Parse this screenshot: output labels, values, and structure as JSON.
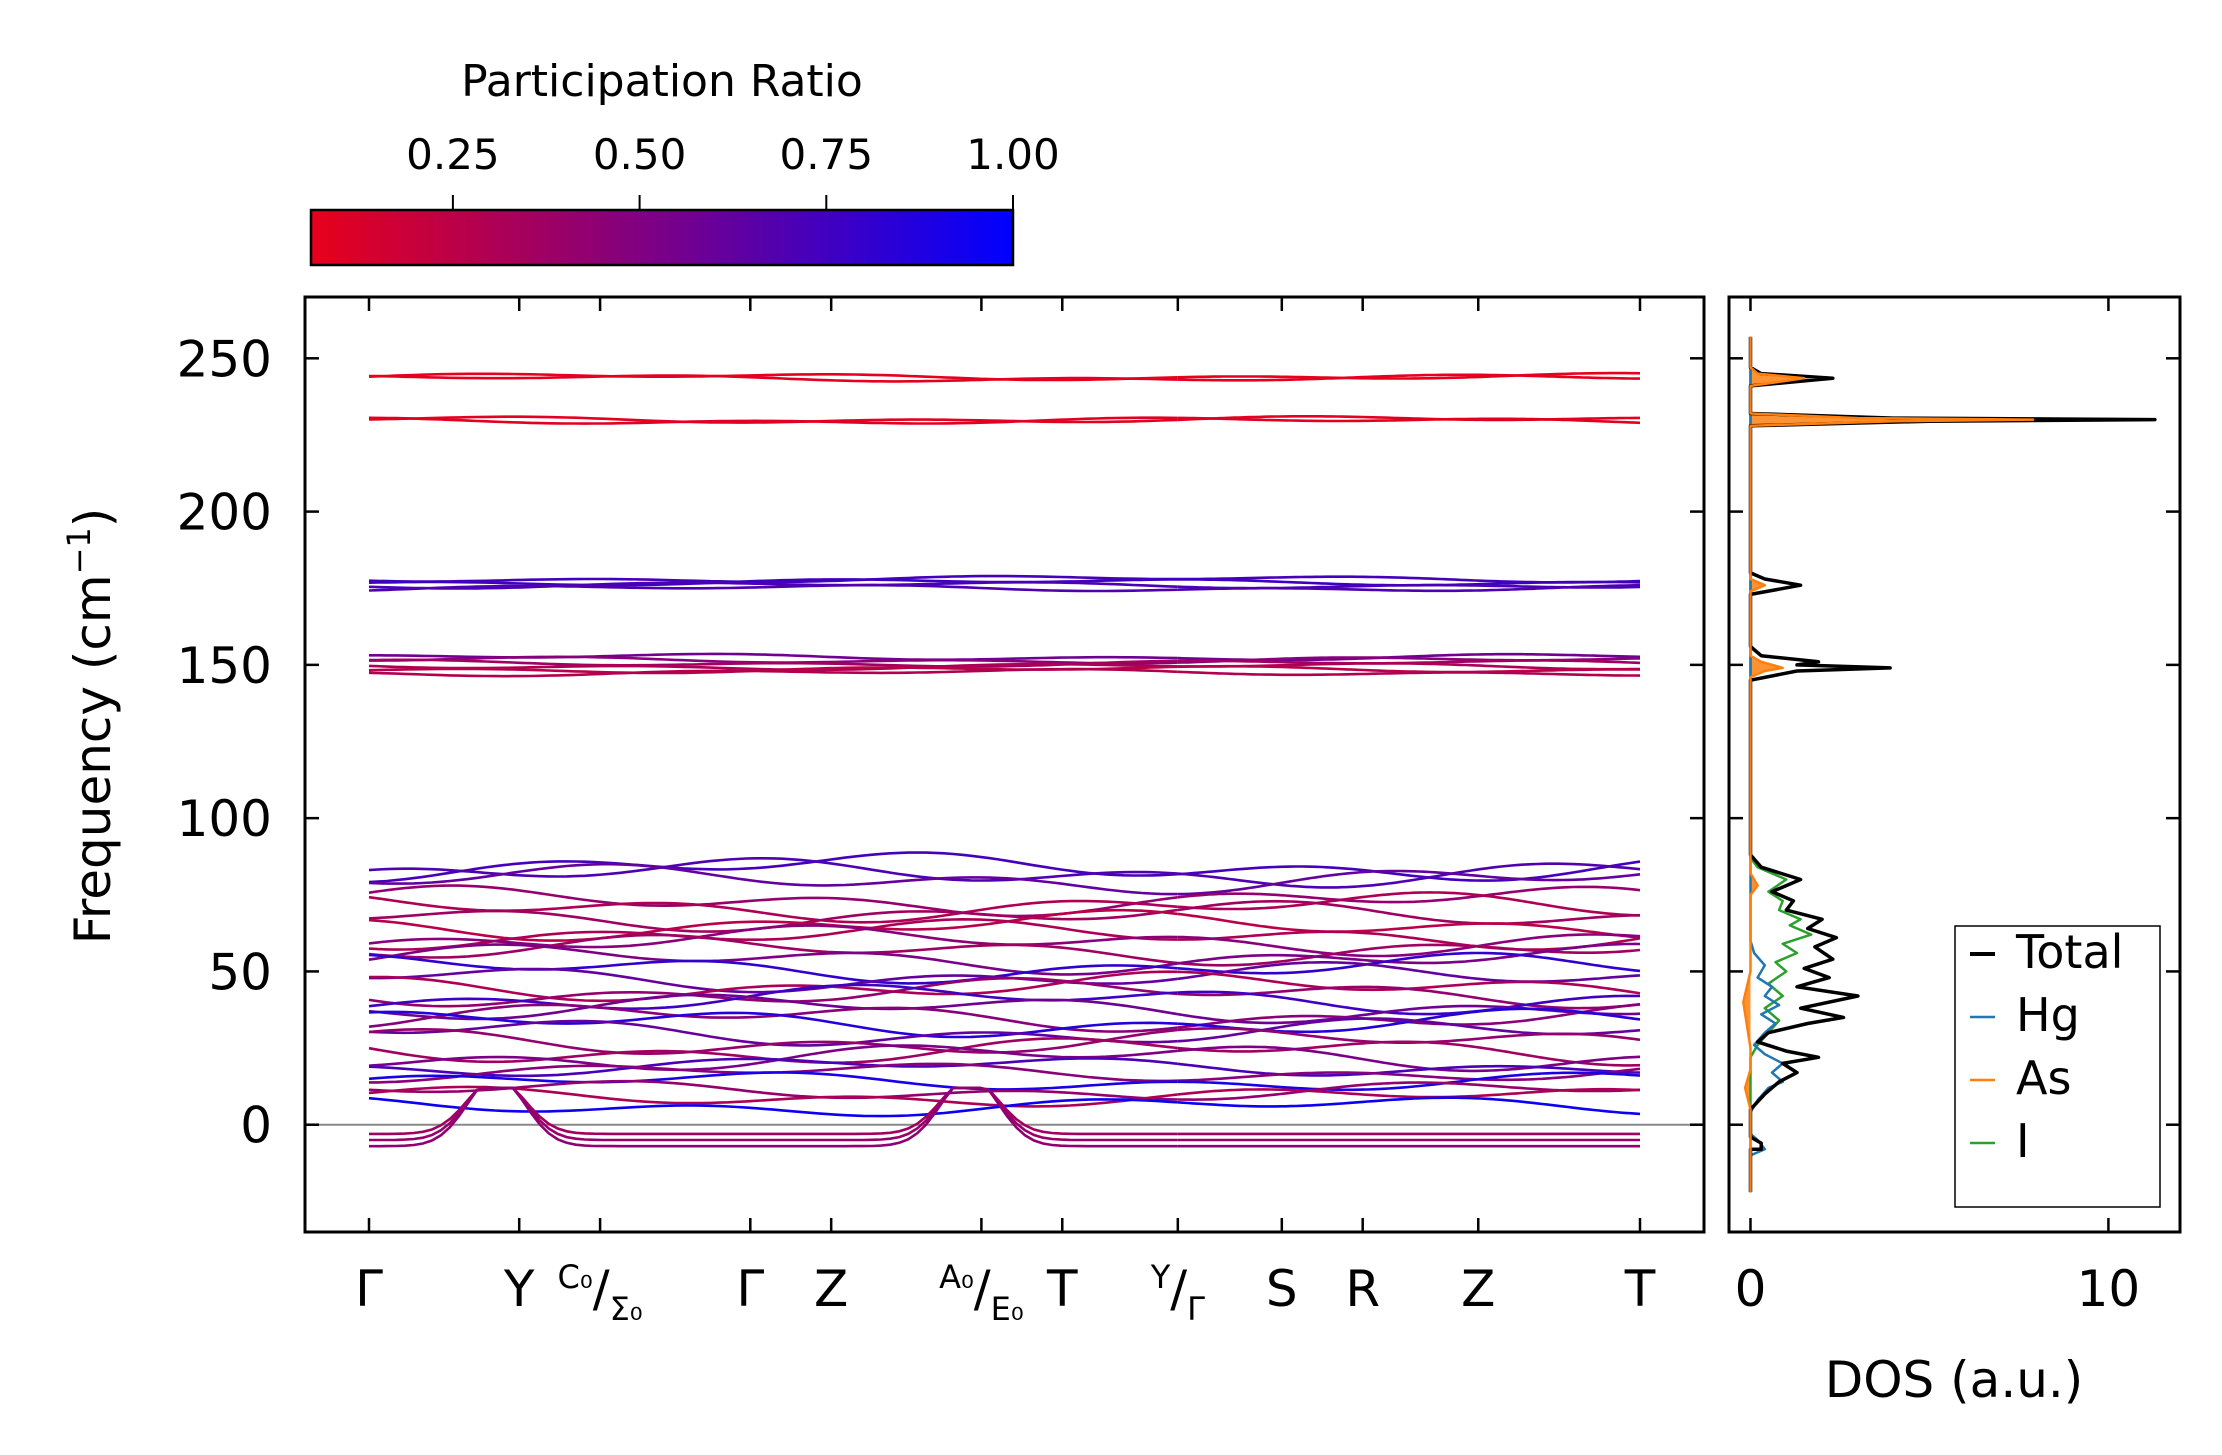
{
  "chart_data": [
    {
      "type": "line",
      "name": "phonon-band-structure",
      "ylabel": "Frequency (cm",
      "ylabel_sup": "−1",
      "ylabel_close": ")",
      "ylim": [
        -35,
        270
      ],
      "yticks": [
        0,
        50,
        100,
        150,
        200,
        250
      ],
      "ytick_labels": [
        "0",
        "50",
        "100",
        "150",
        "200",
        "250"
      ],
      "x_range": [
        0,
        11
      ],
      "segments": [
        [
          0,
          7
        ],
        [
          7,
          11
        ]
      ],
      "kpoints": [
        {
          "x": 0,
          "label": "Γ"
        },
        {
          "x": 1.3,
          "label": "Y"
        },
        {
          "x": 2.0,
          "label": "",
          "sup": "C₀",
          "slash": "/",
          "sub": "Σ₀"
        },
        {
          "x": 3.3,
          "label": "Γ"
        },
        {
          "x": 4.0,
          "label": "Z"
        },
        {
          "x": 5.3,
          "label": "",
          "sup": "A₀",
          "slash": "/",
          "sub": "E₀"
        },
        {
          "x": 6.0,
          "label": "T"
        },
        {
          "x": 7.0,
          "label": "",
          "sup": "Y",
          "slash": "/",
          "sub": "Γ"
        },
        {
          "x": 7.9,
          "label": "S"
        },
        {
          "x": 8.6,
          "label": "R"
        },
        {
          "x": 9.6,
          "label": "Z"
        },
        {
          "x": 11.0,
          "label": "T"
        }
      ],
      "zero_line": 0,
      "colorbar": {
        "title": "Participation Ratio",
        "ticks": [
          0.25,
          0.5,
          0.75,
          1.0
        ],
        "tick_labels": [
          "0.25",
          "0.50",
          "0.75",
          "1.00"
        ],
        "range": [
          0.06,
          1.0
        ],
        "color_low": "#e8001b",
        "color_high": "#0000ff"
      },
      "bands": [
        {
          "base": 244,
          "pr": 0.07
        },
        {
          "base": 243.5,
          "pr": 0.08
        },
        {
          "base": 230,
          "pr": 0.08
        },
        {
          "base": 229.6,
          "pr": 0.09
        },
        {
          "base": 178,
          "pr": 0.72
        },
        {
          "base": 177,
          "pr": 0.74
        },
        {
          "base": 176,
          "pr": 0.7
        },
        {
          "base": 175,
          "pr": 0.68
        },
        {
          "base": 152.5,
          "pr": 0.55
        },
        {
          "base": 151.5,
          "pr": 0.45
        },
        {
          "base": 150.5,
          "pr": 0.35
        },
        {
          "base": 149.5,
          "pr": 0.3
        },
        {
          "base": 148.5,
          "pr": 0.25
        },
        {
          "base": 147.5,
          "pr": 0.28
        },
        {
          "base": 84,
          "pr": 0.72
        },
        {
          "base": 82,
          "pr": 0.68
        },
        {
          "base": 80,
          "pr": 0.6
        },
        {
          "base": 73,
          "pr": 0.4
        },
        {
          "base": 71,
          "pr": 0.3
        },
        {
          "base": 68,
          "pr": 0.35
        },
        {
          "base": 65,
          "pr": 0.25
        },
        {
          "base": 62,
          "pr": 0.3
        },
        {
          "base": 60,
          "pr": 0.45
        },
        {
          "base": 57,
          "pr": 0.35
        },
        {
          "base": 54,
          "pr": 0.5
        },
        {
          "base": 51,
          "pr": 0.8
        },
        {
          "base": 48,
          "pr": 0.6
        },
        {
          "base": 45,
          "pr": 0.3
        },
        {
          "base": 43,
          "pr": 0.4
        },
        {
          "base": 41,
          "pr": 0.75
        },
        {
          "base": 38,
          "pr": 0.55
        },
        {
          "base": 35,
          "pr": 0.45
        },
        {
          "base": 33,
          "pr": 0.85
        },
        {
          "base": 30,
          "pr": 0.6
        },
        {
          "base": 27,
          "pr": 0.4
        },
        {
          "base": 24,
          "pr": 0.35
        },
        {
          "base": 22,
          "pr": 0.5
        },
        {
          "base": 19,
          "pr": 0.7
        },
        {
          "base": 17,
          "pr": 0.45
        },
        {
          "base": 14,
          "pr": 0.9
        },
        {
          "base": 11,
          "pr": 0.4
        },
        {
          "base": 9,
          "pr": 0.3
        },
        {
          "base": 6,
          "pr": 0.95
        },
        {
          "base": -3,
          "pr": 0.35
        },
        {
          "base": -5,
          "pr": 0.38
        },
        {
          "base": -7,
          "pr": 0.42
        }
      ]
    },
    {
      "type": "line",
      "name": "density-of-states",
      "xlabel": "DOS (a.u.)",
      "xlim": [
        -0.6,
        12
      ],
      "xticks": [
        0,
        10
      ],
      "xtick_labels": [
        "0",
        "10"
      ],
      "ylim": [
        -35,
        270
      ],
      "legend_position": "lower-right",
      "series": [
        {
          "name": "Total",
          "color": "#000000",
          "points": [
            [
              0,
              -22
            ],
            [
              0,
              -8
            ],
            [
              0.3,
              -8
            ],
            [
              0.3,
              -6
            ],
            [
              0,
              -4
            ],
            [
              0,
              5
            ],
            [
              0.4,
              10
            ],
            [
              0.8,
              14
            ],
            [
              1.3,
              17
            ],
            [
              0.9,
              20
            ],
            [
              1.9,
              22
            ],
            [
              1.0,
              24
            ],
            [
              0.2,
              27
            ],
            [
              0.5,
              30
            ],
            [
              1.6,
              33
            ],
            [
              2.6,
              35
            ],
            [
              1.4,
              38
            ],
            [
              3.0,
              42
            ],
            [
              1.3,
              45
            ],
            [
              2.2,
              48
            ],
            [
              1.5,
              51
            ],
            [
              2.3,
              54
            ],
            [
              1.8,
              58
            ],
            [
              2.4,
              61
            ],
            [
              1.6,
              64
            ],
            [
              2.0,
              67
            ],
            [
              1.0,
              70
            ],
            [
              1.2,
              73
            ],
            [
              0.6,
              76
            ],
            [
              1.4,
              80
            ],
            [
              0.3,
              84
            ],
            [
              0,
              88
            ],
            [
              0,
              145
            ],
            [
              1.3,
              148
            ],
            [
              3.9,
              149
            ],
            [
              1.3,
              150
            ],
            [
              1.9,
              151
            ],
            [
              0.3,
              153
            ],
            [
              0,
              156
            ],
            [
              0,
              173
            ],
            [
              1.4,
              176
            ],
            [
              0.4,
              178
            ],
            [
              0,
              180
            ],
            [
              0,
              228
            ],
            [
              5,
              229.5
            ],
            [
              11.3,
              230
            ],
            [
              4,
              230.5
            ],
            [
              0,
              232
            ],
            [
              0,
              241
            ],
            [
              2.3,
              243.5
            ],
            [
              0.3,
              245
            ],
            [
              0,
              247
            ],
            [
              0,
              257
            ]
          ]
        },
        {
          "name": "Hg",
          "color": "#1f77b4",
          "points": [
            [
              0,
              -22
            ],
            [
              0,
              -10
            ],
            [
              0.4,
              -8
            ],
            [
              0.2,
              -5
            ],
            [
              0,
              -3
            ],
            [
              0,
              4
            ],
            [
              0.2,
              8
            ],
            [
              0.5,
              12
            ],
            [
              0.9,
              14
            ],
            [
              0.6,
              17
            ],
            [
              0.9,
              20
            ],
            [
              0.4,
              23
            ],
            [
              0.1,
              26
            ],
            [
              0.4,
              30
            ],
            [
              0.7,
              33
            ],
            [
              0.3,
              36
            ],
            [
              0.8,
              39
            ],
            [
              0.4,
              42
            ],
            [
              0.6,
              45
            ],
            [
              0.2,
              48
            ],
            [
              0.4,
              52
            ],
            [
              0.1,
              56
            ],
            [
              0,
              60
            ],
            [
              0,
              257
            ]
          ]
        },
        {
          "name": "As",
          "color": "#ff7f0e",
          "points": [
            [
              0,
              -22
            ],
            [
              0,
              5
            ],
            [
              -0.15,
              12
            ],
            [
              0,
              18
            ],
            [
              0,
              25
            ],
            [
              -0.2,
              40
            ],
            [
              0,
              50
            ],
            [
              0,
              75
            ],
            [
              0.2,
              78
            ],
            [
              0,
              82
            ],
            [
              0,
              146
            ],
            [
              0.4,
              148
            ],
            [
              0.9,
              149
            ],
            [
              0.3,
              151
            ],
            [
              0,
              153
            ],
            [
              0,
              174
            ],
            [
              0.4,
              176
            ],
            [
              0,
              178
            ],
            [
              0,
              228
            ],
            [
              4,
              229.5
            ],
            [
              7.9,
              230
            ],
            [
              3,
              230.5
            ],
            [
              0,
              232
            ],
            [
              0,
              241
            ],
            [
              1.5,
              243.5
            ],
            [
              0.2,
              245
            ],
            [
              0,
              247
            ],
            [
              0,
              257
            ]
          ]
        },
        {
          "name": "I",
          "color": "#2ca02c",
          "points": [
            [
              0,
              -22
            ],
            [
              0,
              22
            ],
            [
              0.2,
              26
            ],
            [
              0.5,
              30
            ],
            [
              0.8,
              34
            ],
            [
              0.4,
              38
            ],
            [
              0.9,
              42
            ],
            [
              0.5,
              46
            ],
            [
              1.0,
              50
            ],
            [
              0.7,
              53
            ],
            [
              1.3,
              56
            ],
            [
              0.9,
              59
            ],
            [
              1.7,
              62
            ],
            [
              1.1,
              65
            ],
            [
              1.4,
              67
            ],
            [
              0.8,
              70
            ],
            [
              0.9,
              73
            ],
            [
              0.5,
              76
            ],
            [
              1.0,
              80
            ],
            [
              0.2,
              84
            ],
            [
              0,
              87
            ],
            [
              0,
              257
            ]
          ]
        }
      ]
    }
  ]
}
